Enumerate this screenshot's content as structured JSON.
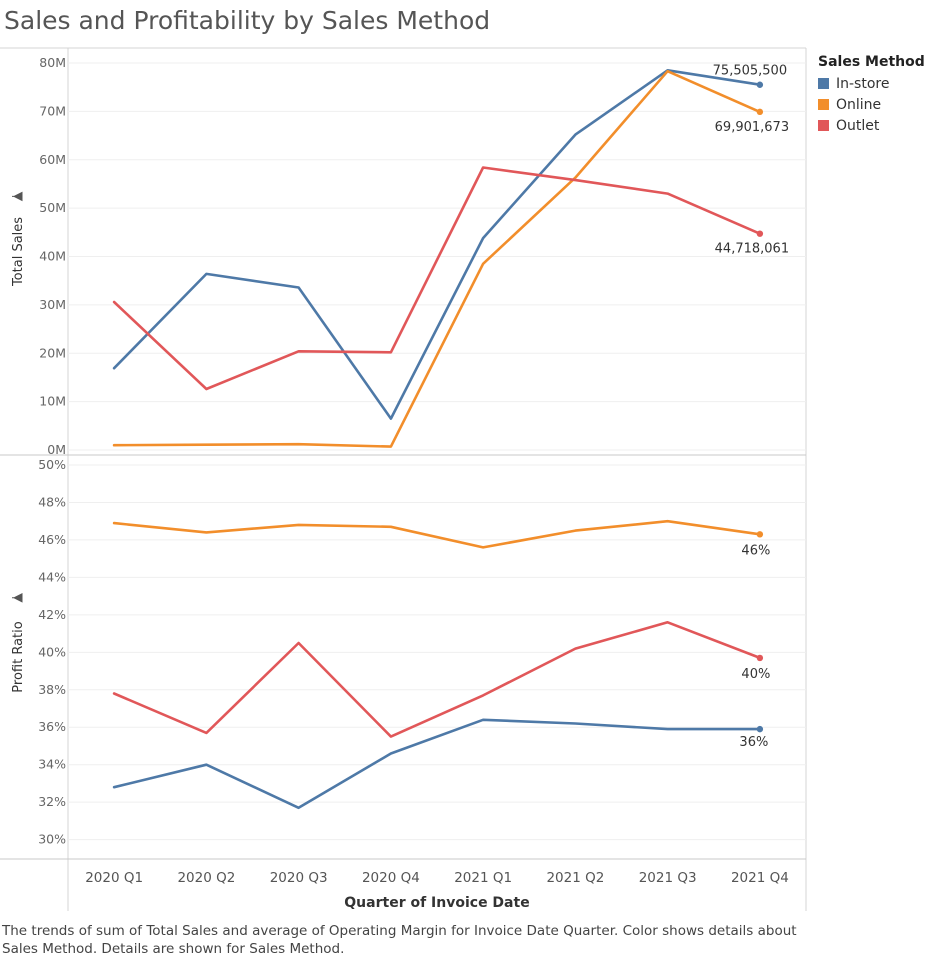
{
  "title": "Sales and Profitability by Sales Method",
  "legend": {
    "title": "Sales Method",
    "items": [
      {
        "label": "In-store",
        "color": "#4e79a7"
      },
      {
        "label": "Online",
        "color": "#f28e2b"
      },
      {
        "label": "Outlet",
        "color": "#e15759"
      }
    ]
  },
  "caption": "The trends of sum of Total Sales and average of Operating Margin for Invoice Date Quarter.  Color shows details about Sales Method.  Details are shown for Sales Method.",
  "chart_data": [
    {
      "type": "line",
      "ylabel": "Total Sales",
      "ylim": [
        0,
        80000000
      ],
      "yticks": [
        {
          "value": 0,
          "label": "0M"
        },
        {
          "value": 10000000,
          "label": "10M"
        },
        {
          "value": 20000000,
          "label": "20M"
        },
        {
          "value": 30000000,
          "label": "30M"
        },
        {
          "value": 40000000,
          "label": "40M"
        },
        {
          "value": 50000000,
          "label": "50M"
        },
        {
          "value": 60000000,
          "label": "60M"
        },
        {
          "value": 70000000,
          "label": "70M"
        },
        {
          "value": 80000000,
          "label": "80M"
        }
      ],
      "categories": [
        "2020 Q1",
        "2020 Q2",
        "2020 Q3",
        "2020 Q4",
        "2021 Q1",
        "2021 Q2",
        "2021 Q3",
        "2021 Q4"
      ],
      "series": [
        {
          "name": "In-store",
          "color": "#4e79a7",
          "values": [
            16900000,
            36400000,
            33600000,
            6500000,
            43800000,
            65200000,
            78500000,
            75505500
          ],
          "end_label": "75,505,500"
        },
        {
          "name": "Online",
          "color": "#f28e2b",
          "values": [
            1000000,
            1100000,
            1200000,
            700000,
            38500000,
            56300000,
            78300000,
            69901673
          ],
          "end_label": "69,901,673"
        },
        {
          "name": "Outlet",
          "color": "#e15759",
          "values": [
            30600000,
            12600000,
            20400000,
            20200000,
            58400000,
            55800000,
            53000000,
            44718061
          ],
          "end_label": "44,718,061"
        }
      ],
      "grid": true
    },
    {
      "type": "line",
      "ylabel": "Profit Ratio",
      "ylim": [
        29.5,
        50
      ],
      "yticks": [
        {
          "value": 30,
          "label": "30%"
        },
        {
          "value": 32,
          "label": "32%"
        },
        {
          "value": 34,
          "label": "34%"
        },
        {
          "value": 36,
          "label": "36%"
        },
        {
          "value": 38,
          "label": "38%"
        },
        {
          "value": 40,
          "label": "40%"
        },
        {
          "value": 42,
          "label": "42%"
        },
        {
          "value": 44,
          "label": "44%"
        },
        {
          "value": 46,
          "label": "46%"
        },
        {
          "value": 48,
          "label": "48%"
        },
        {
          "value": 50,
          "label": "50%"
        }
      ],
      "xlabel": "Quarter of Invoice Date",
      "categories": [
        "2020 Q1",
        "2020 Q2",
        "2020 Q3",
        "2020 Q4",
        "2021 Q1",
        "2021 Q2",
        "2021 Q3",
        "2021 Q4"
      ],
      "series": [
        {
          "name": "In-store",
          "color": "#4e79a7",
          "values": [
            32.8,
            34.0,
            31.7,
            34.6,
            36.4,
            36.2,
            35.9,
            35.9
          ],
          "end_label": "36%"
        },
        {
          "name": "Online",
          "color": "#f28e2b",
          "values": [
            46.9,
            46.4,
            46.8,
            46.7,
            45.6,
            46.5,
            47.0,
            46.3
          ],
          "end_label": "46%"
        },
        {
          "name": "Outlet",
          "color": "#e15759",
          "values": [
            37.8,
            35.7,
            40.5,
            35.5,
            37.7,
            40.2,
            41.6,
            39.7
          ],
          "end_label": "40%"
        }
      ],
      "grid": true
    }
  ]
}
